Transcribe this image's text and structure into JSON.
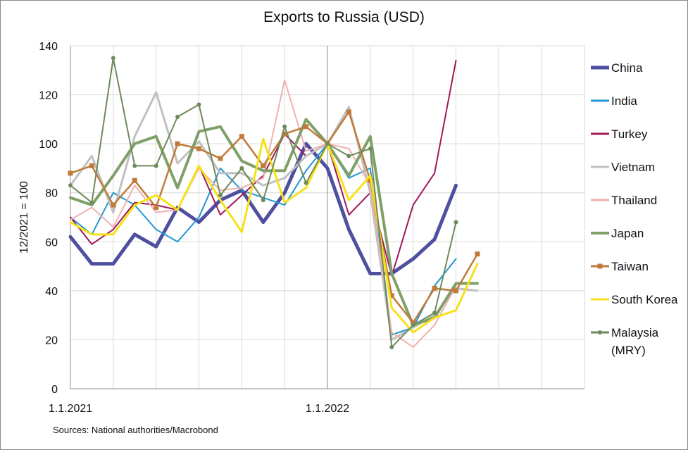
{
  "chart_data": {
    "type": "line",
    "title": "Exports to Russia (USD)",
    "ylabel": "12/2021 = 100",
    "xlabel": "",
    "ylim": [
      0,
      140
    ],
    "yticks": [
      0,
      20,
      40,
      60,
      80,
      100,
      120,
      140
    ],
    "x": [
      "2021-01",
      "2021-02",
      "2021-03",
      "2021-04",
      "2021-05",
      "2021-06",
      "2021-07",
      "2021-08",
      "2021-09",
      "2021-10",
      "2021-11",
      "2021-12",
      "2022-01",
      "2022-02",
      "2022-03",
      "2022-04",
      "2022-05",
      "2022-06",
      "2022-07",
      "2022-08",
      "2022-09",
      "2022-10",
      "2022-11",
      "2022-12"
    ],
    "xtick_labels": [
      {
        "x": "2021-01",
        "label": "1.1.2021"
      },
      {
        "x": "2022-01",
        "label": "1.1.2022"
      }
    ],
    "grid": true,
    "legend_position": "right",
    "series": [
      {
        "name": "China",
        "color": "#4f4fa0",
        "width": 5,
        "marker": "none",
        "values": [
          62,
          51,
          51,
          63,
          58,
          74,
          68,
          77,
          81,
          68,
          80,
          100,
          90,
          65,
          47,
          47,
          53,
          61,
          83,
          null,
          null,
          null,
          null,
          null
        ]
      },
      {
        "name": "India",
        "color": "#2196d3",
        "width": 2,
        "marker": "none",
        "values": [
          70,
          63,
          80,
          75,
          65,
          60,
          70,
          90,
          81,
          78,
          75,
          89,
          100,
          86,
          90,
          22,
          25,
          42,
          53,
          null,
          null,
          null,
          null,
          null
        ]
      },
      {
        "name": "Turkey",
        "color": "#a0185a",
        "width": 2,
        "marker": "none",
        "values": [
          70,
          59,
          65,
          76,
          75,
          73,
          91,
          71,
          79,
          87,
          104,
          95,
          100,
          71,
          80,
          46,
          75,
          88,
          134,
          null,
          null,
          null,
          null,
          null
        ]
      },
      {
        "name": "Vietnam",
        "color": "#c0c0c0",
        "width": 3,
        "marker": "none",
        "values": [
          83,
          95,
          72,
          103,
          121,
          92,
          101,
          88,
          88,
          83,
          86,
          95,
          100,
          115,
          80,
          20,
          25,
          30,
          41,
          40,
          null,
          null,
          null,
          null
        ]
      },
      {
        "name": "Thailand",
        "color": "#f0b0b0",
        "width": 2,
        "marker": "none",
        "values": [
          69,
          74,
          66,
          83,
          72,
          73,
          90,
          81,
          82,
          86,
          126,
          97,
          100,
          98,
          83,
          23,
          17,
          26,
          42,
          null,
          null,
          null,
          null,
          null
        ]
      },
      {
        "name": "Japan",
        "color": "#7fa069",
        "width": 4,
        "marker": "none",
        "values": [
          78,
          75,
          87,
          100,
          103,
          82,
          105,
          107,
          93,
          89,
          89,
          110,
          100,
          87,
          103,
          47,
          26,
          29,
          43,
          43,
          null,
          null,
          null,
          null
        ]
      },
      {
        "name": "Taiwan",
        "color": "#c07a3a",
        "width": 2.5,
        "marker": "square",
        "values": [
          88,
          91,
          75,
          85,
          74,
          100,
          98,
          94,
          103,
          91,
          104,
          107,
          100,
          113,
          85,
          38,
          27,
          41,
          40,
          55,
          null,
          null,
          null,
          null
        ]
      },
      {
        "name": "South Korea",
        "color": "#f5e11a",
        "width": 3,
        "marker": "none",
        "values": [
          68,
          63,
          63,
          75,
          79,
          73,
          91,
          77,
          64,
          102,
          76,
          82,
          100,
          77,
          87,
          33,
          23,
          29,
          32,
          51,
          null,
          null,
          null,
          null
        ]
      },
      {
        "name": "Malaysia (MRY)",
        "color": "#6e8a5a",
        "width": 2,
        "marker": "circle",
        "values": [
          83,
          76,
          135,
          91,
          91,
          111,
          116,
          79,
          90,
          77,
          107,
          84,
          100,
          95,
          98,
          17,
          26,
          31,
          68,
          null,
          null,
          null,
          null,
          null
        ]
      }
    ],
    "legend": [
      {
        "label": "China"
      },
      {
        "label": "India"
      },
      {
        "label": "Turkey"
      },
      {
        "label": "Vietnam"
      },
      {
        "label": "Thailand"
      },
      {
        "label": "Japan"
      },
      {
        "label": "Taiwan"
      },
      {
        "label": "South Korea"
      },
      {
        "label": "Malaysia",
        "label2": "(MRY)"
      }
    ],
    "source_note": "Sources: National authorities/Macrobond"
  }
}
